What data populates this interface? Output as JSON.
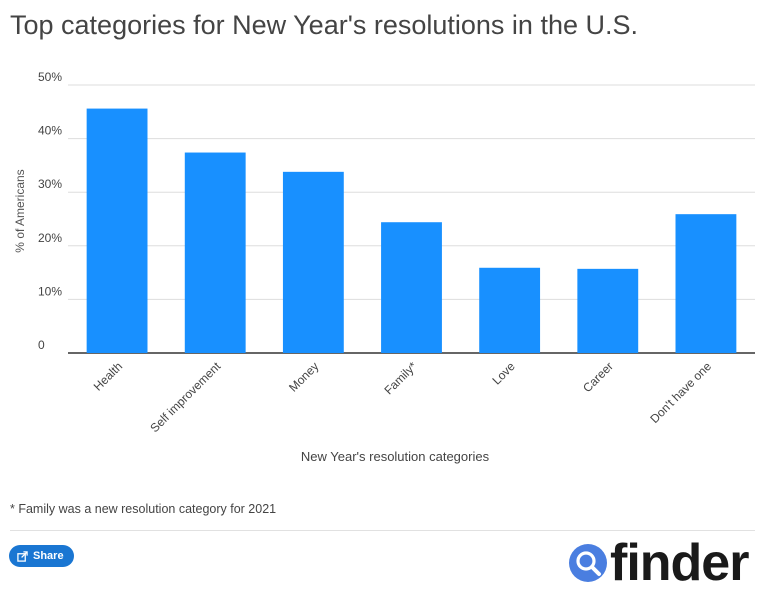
{
  "chart_data": {
    "type": "bar",
    "title": "Top categories for New Year's resolutions in the U.S.",
    "xlabel": "New Year's resolution categories",
    "ylabel": "% of Americans",
    "categories": [
      "Health",
      "Self improvement",
      "Money",
      "Family*",
      "Love",
      "Career",
      "Don't have one"
    ],
    "values": [
      45.6,
      37.4,
      33.8,
      24.4,
      15.9,
      15.7,
      25.9
    ],
    "ylim": [
      0,
      50
    ],
    "yticks": [
      0,
      10,
      20,
      30,
      40,
      50
    ],
    "ytick_labels": [
      "0",
      "10%",
      "20%",
      "30%",
      "40%",
      "50%"
    ],
    "bar_color": "#1890ff",
    "grid": true
  },
  "footnote": "* Family was a new resolution category for 2021",
  "share": {
    "label": "Share",
    "icon": "share-icon"
  },
  "brand": {
    "name": "finder",
    "icon": "search-icon",
    "accent": "#4a7ee0"
  }
}
